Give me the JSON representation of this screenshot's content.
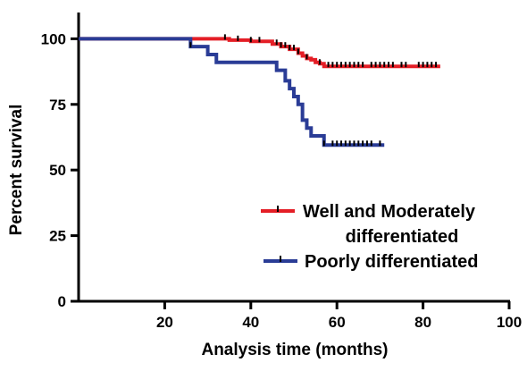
{
  "chart_data": {
    "type": "line",
    "subtype": "kaplan-meier-step",
    "title": "",
    "xlabel": "Analysis time (months)",
    "ylabel": "Percent survival",
    "xlim": [
      0,
      100
    ],
    "ylim": [
      0,
      110
    ],
    "x_ticks": [
      "20",
      "40",
      "60",
      "80",
      "100"
    ],
    "y_ticks": [
      "0",
      "25",
      "50",
      "75",
      "100"
    ],
    "grid": false,
    "legend_position": "right-middle",
    "series": [
      {
        "name": "Well and Moderately differentiated",
        "legend_lines": [
          "Well and Moderately",
          "differentiated"
        ],
        "color": "#e41e26",
        "steps": [
          [
            0,
            100
          ],
          [
            35,
            99.5
          ],
          [
            40,
            99
          ],
          [
            45,
            98
          ],
          [
            47,
            97
          ],
          [
            49,
            96
          ],
          [
            51,
            94.5
          ],
          [
            52,
            93.5
          ],
          [
            53,
            92.5
          ],
          [
            54,
            92
          ],
          [
            55,
            91
          ],
          [
            56,
            90.5
          ],
          [
            57,
            89.5
          ],
          [
            84,
            89.5
          ]
        ],
        "censors": [
          34,
          37,
          40,
          42,
          46,
          47,
          48,
          49,
          50,
          51,
          53,
          56,
          58,
          59,
          60,
          61,
          62,
          63,
          64,
          65,
          66,
          68,
          69,
          70,
          71,
          72,
          73,
          75,
          76,
          79,
          80,
          81,
          82,
          83
        ]
      },
      {
        "name": "Poorly differentiated",
        "legend_lines": [
          "Poorly differentiated"
        ],
        "color": "#2a3c96",
        "steps": [
          [
            0,
            100
          ],
          [
            26,
            97
          ],
          [
            30,
            94
          ],
          [
            32,
            91
          ],
          [
            46,
            88
          ],
          [
            48,
            84
          ],
          [
            49,
            81
          ],
          [
            50,
            78
          ],
          [
            51,
            75
          ],
          [
            52,
            69
          ],
          [
            53,
            66
          ],
          [
            54,
            63
          ],
          [
            57,
            59.5
          ],
          [
            71,
            59.5
          ]
        ],
        "censors": [
          26,
          57,
          59,
          60,
          61,
          62,
          63,
          64,
          65,
          66,
          67,
          68,
          70
        ]
      }
    ]
  }
}
